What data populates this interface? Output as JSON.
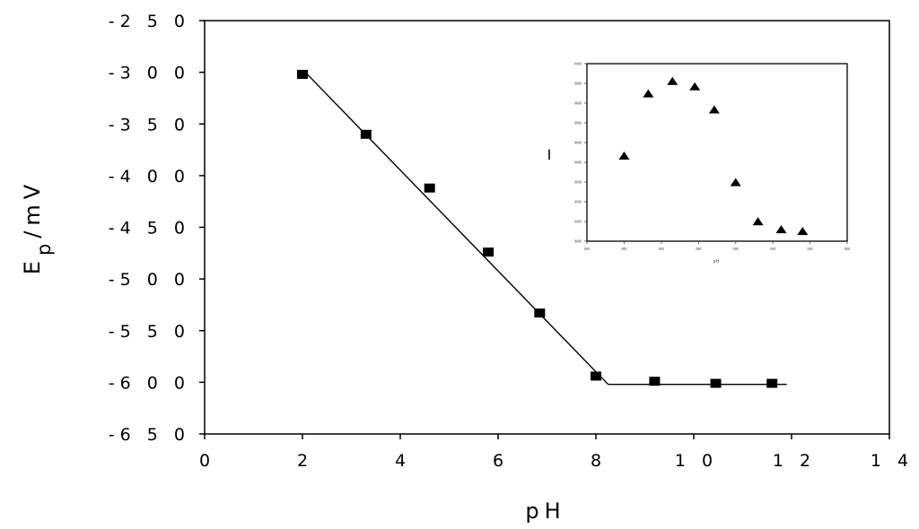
{
  "chart_data": [
    {
      "type": "scatter",
      "title": "",
      "xlabel": "pH",
      "ylabel_main": "E",
      "ylabel_sub": "p",
      "ylabel_unit": "/mV",
      "xlim": [
        0,
        14
      ],
      "ylim": [
        -650,
        -250
      ],
      "xticks": [
        0,
        2,
        4,
        6,
        8,
        10,
        12,
        14
      ],
      "yticks": [
        -250,
        -300,
        -350,
        -400,
        -450,
        -500,
        -550,
        -600,
        -650
      ],
      "xtick_labels": [
        "0",
        "2",
        "4",
        "6",
        "8",
        "1 0",
        "1 2",
        "1 4"
      ],
      "ytick_labels": [
        "-2 5 0",
        "-3 0 0",
        "-3 5 0",
        "-4 0 0",
        "-4 5 0",
        "-5 0 0",
        "-5 5 0",
        "-6 0 0",
        "-6 5 0"
      ],
      "marker": "square",
      "grid": false,
      "series": [
        {
          "x": [
            2.0,
            3.3,
            4.6,
            5.8,
            6.85,
            8.0,
            9.2,
            10.45,
            11.6
          ],
          "y": [
            -302,
            -360,
            -412,
            -474,
            -533,
            -594,
            -599,
            -601,
            -601
          ]
        }
      ],
      "fit_lines": [
        {
          "x": [
            2.1,
            8.25
          ],
          "y": [
            -302,
            -602
          ]
        },
        {
          "x": [
            8.25,
            11.9
          ],
          "y": [
            -602,
            -602
          ]
        }
      ]
    },
    {
      "type": "scatter",
      "title": "",
      "xlabel": "pH",
      "ylabel": "I",
      "marker": "triangle",
      "grid": false,
      "xlim": [
        0,
        14
      ],
      "ylim": [
        0,
        1
      ],
      "series": [
        {
          "x": [
            2,
            3.3,
            4.6,
            5.8,
            6.85,
            8.0,
            9.2,
            10.45,
            11.6
          ],
          "y": [
            0.48,
            0.83,
            0.9,
            0.87,
            0.74,
            0.33,
            0.11,
            0.065,
            0.055
          ]
        }
      ]
    }
  ]
}
